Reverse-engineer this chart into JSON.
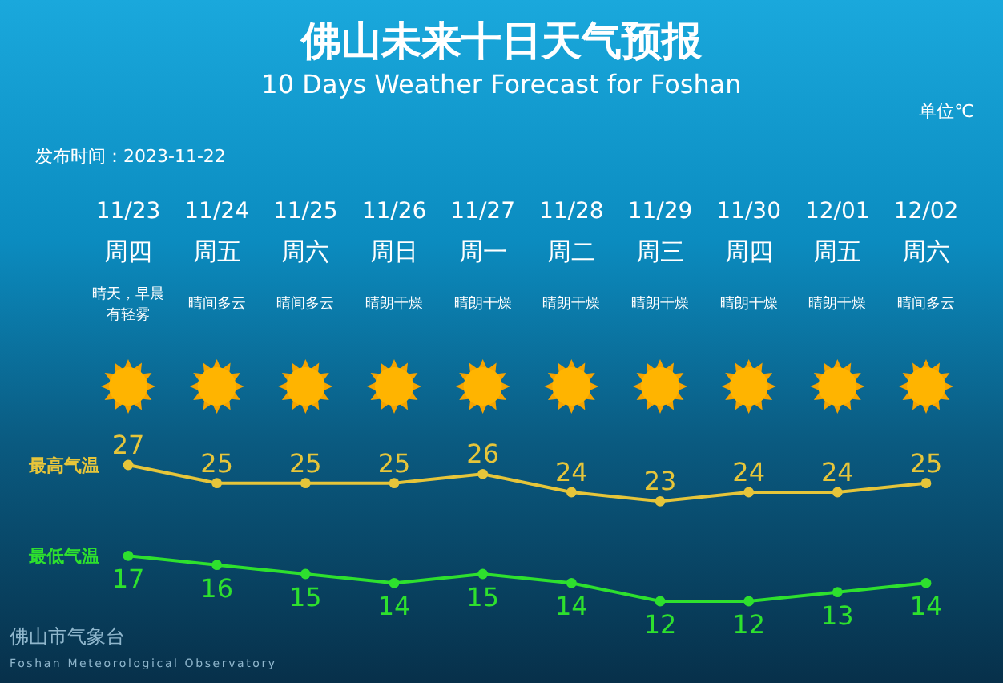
{
  "chart_data": {
    "type": "line",
    "title": "佛山未来十日天气预报",
    "subtitle": "10 Days Weather Forecast for Foshan",
    "ylabel": "单位℃",
    "categories": [
      "11/23",
      "11/24",
      "11/25",
      "11/26",
      "11/27",
      "11/28",
      "11/29",
      "11/30",
      "12/01",
      "12/02"
    ],
    "series": [
      {
        "name": "最高气温",
        "color": "#e6c53a",
        "values": [
          27,
          25,
          25,
          25,
          26,
          24,
          23,
          24,
          24,
          25
        ]
      },
      {
        "name": "最低气温",
        "color": "#2ee02e",
        "values": [
          17,
          16,
          15,
          14,
          15,
          14,
          12,
          12,
          13,
          14
        ]
      }
    ],
    "data_labels": true,
    "marker": "circle",
    "legend": "left",
    "annotations": [
      "发布时间：2023-11-22",
      "周四",
      "周五",
      "周六",
      "周日",
      "周一",
      "周二",
      "周三",
      "周四",
      "周五",
      "周六",
      "晴天，早晨有轻雾",
      "晴间多云",
      "晴间多云",
      "晴朗干燥",
      "晴朗干燥",
      "晴朗干燥",
      "晴朗干燥",
      "晴朗干燥",
      "晴朗干燥",
      "晴间多云",
      "佛山市气象台",
      "Foshan Meteorological Observatory"
    ]
  }
}
